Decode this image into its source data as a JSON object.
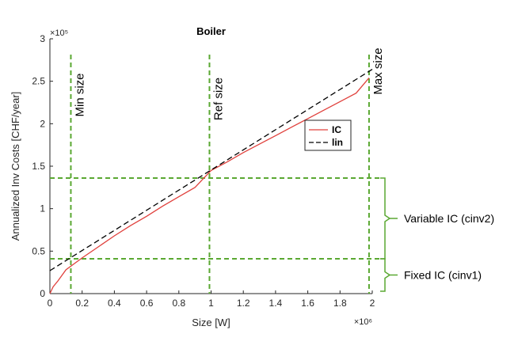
{
  "chart_data": {
    "type": "line",
    "title": "Boiler",
    "xlabel": "Size [W]",
    "ylabel": "Annualized Inv Costs [CHF/year]",
    "x_exponent_label": "×10^6",
    "y_exponent_label": "×10^5",
    "xlim": [
      0,
      2000000
    ],
    "ylim": [
      0,
      300000
    ],
    "xticks": [
      0,
      200000,
      400000,
      600000,
      800000,
      1000000,
      1200000,
      1400000,
      1600000,
      1800000,
      2000000
    ],
    "xtick_labels": [
      "0",
      "0.2",
      "0.4",
      "0.6",
      "0.8",
      "1",
      "1.2",
      "1.4",
      "1.6",
      "1.8",
      "2"
    ],
    "yticks": [
      0,
      50000,
      100000,
      150000,
      200000,
      250000,
      300000
    ],
    "ytick_labels": [
      "0",
      "0.5",
      "1",
      "1.5",
      "2",
      "2.5",
      "3"
    ],
    "grid": false,
    "legend": {
      "placement": "inside-right"
    },
    "series": [
      {
        "name": "IC",
        "color": "#e0403c",
        "style": "solid",
        "x": [
          0,
          20000,
          50000,
          100000,
          200000,
          300000,
          400000,
          500000,
          600000,
          700000,
          800000,
          900000,
          1000000,
          1100000,
          1200000,
          1300000,
          1400000,
          1500000,
          1600000,
          1700000,
          1800000,
          1900000,
          1980000
        ],
        "y": [
          0,
          8000,
          15000,
          28000,
          42000,
          55000,
          68000,
          80000,
          91000,
          103000,
          114000,
          125000,
          145000,
          155000,
          166000,
          176000,
          186000,
          196000,
          206000,
          216000,
          226000,
          236000,
          254000
        ]
      },
      {
        "name": "lin",
        "color": "#000000",
        "style": "dashed",
        "x": [
          0,
          2000000
        ],
        "y": [
          27000,
          264000
        ]
      }
    ],
    "vlines": [
      {
        "x": 130000,
        "label": "Min size"
      },
      {
        "x": 990000,
        "label": "Ref size"
      },
      {
        "x": 1980000,
        "label": "Max size"
      }
    ],
    "hlines": [
      {
        "y": 41000
      },
      {
        "y": 136000
      }
    ],
    "annotations": {
      "guide_color": "#5aa832",
      "variable_label": "Variable IC (cinv2)",
      "fixed_label": "Fixed IC (cinv1)"
    }
  }
}
